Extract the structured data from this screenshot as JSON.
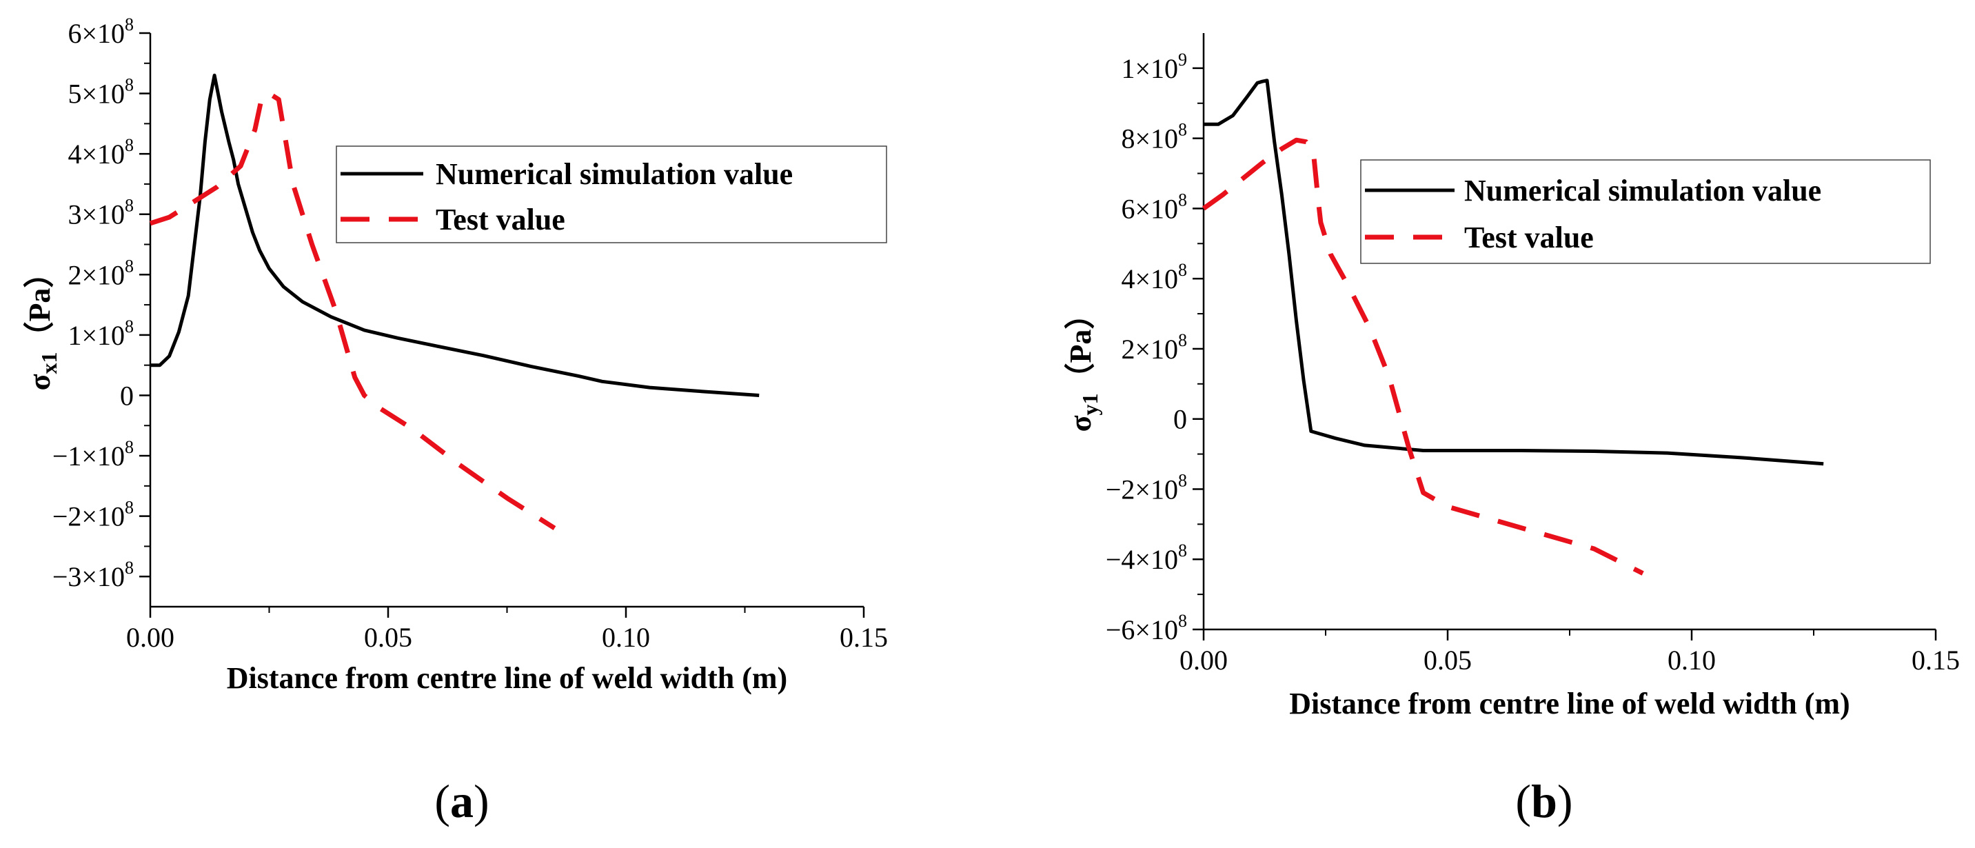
{
  "chart_data": [
    {
      "type": "line",
      "panel_label": "a",
      "xlabel": "Distance from centre line of weld width (m)",
      "ylabel": {
        "main": "σ",
        "sub": "x1",
        "unit": "（Pa）"
      },
      "xlim": [
        0.0,
        0.15
      ],
      "ylim": [
        -350000000,
        600000000
      ],
      "x_ticks": [
        {
          "value": 0.0,
          "label": "0.00"
        },
        {
          "value": 0.05,
          "label": "0.05"
        },
        {
          "value": 0.1,
          "label": "0.10"
        },
        {
          "value": 0.15,
          "label": "0.15"
        }
      ],
      "y_ticks": [
        {
          "value": 600000000,
          "mant": "6×10",
          "exp": "8"
        },
        {
          "value": 500000000,
          "mant": "5×10",
          "exp": "8"
        },
        {
          "value": 400000000,
          "mant": "4×10",
          "exp": "8"
        },
        {
          "value": 300000000,
          "mant": "3×10",
          "exp": "8"
        },
        {
          "value": 200000000,
          "mant": "2×10",
          "exp": "8"
        },
        {
          "value": 100000000,
          "mant": "1×10",
          "exp": "8"
        },
        {
          "value": 0,
          "mant": "0",
          "exp": ""
        },
        {
          "value": -100000000,
          "mant": "−1×10",
          "exp": "8"
        },
        {
          "value": -200000000,
          "mant": "−2×10",
          "exp": "8"
        },
        {
          "value": -300000000,
          "mant": "−3×10",
          "exp": "8"
        }
      ],
      "legend_position": "upper-right",
      "series": [
        {
          "name": "Numerical simulation value",
          "color": "#000000",
          "style": "solid",
          "x": [
            0.0,
            0.002,
            0.004,
            0.006,
            0.008,
            0.0105,
            0.0115,
            0.0125,
            0.0135,
            0.015,
            0.0165,
            0.0175,
            0.0185,
            0.02,
            0.0215,
            0.023,
            0.025,
            0.028,
            0.032,
            0.038,
            0.045,
            0.052,
            0.06,
            0.07,
            0.08,
            0.09,
            0.095,
            0.105,
            0.115,
            0.128
          ],
          "y": [
            50000000,
            50000000,
            65000000,
            105000000,
            165000000,
            330000000,
            420000000,
            490000000,
            530000000,
            470000000,
            420000000,
            390000000,
            350000000,
            310000000,
            270000000,
            240000000,
            210000000,
            180000000,
            155000000,
            130000000,
            108000000,
            95000000,
            82000000,
            66000000,
            48000000,
            32000000,
            23000000,
            13000000,
            7000000,
            0
          ]
        },
        {
          "name": "Test value",
          "color": "#e8101a",
          "style": "dashed",
          "x": [
            0.0,
            0.004,
            0.009,
            0.014,
            0.019,
            0.022,
            0.0235,
            0.025,
            0.027,
            0.03,
            0.034,
            0.039,
            0.043,
            0.045,
            0.048,
            0.055,
            0.065,
            0.075,
            0.085
          ],
          "y": [
            285000000,
            295000000,
            320000000,
            345000000,
            380000000,
            440000000,
            495000000,
            500000000,
            490000000,
            350000000,
            250000000,
            140000000,
            30000000,
            0,
            -20000000,
            -55000000,
            -115000000,
            -170000000,
            -220000000
          ]
        }
      ]
    },
    {
      "type": "line",
      "panel_label": "b",
      "xlabel": "Distance from centre line of weld width (m)",
      "ylabel": {
        "main": "σ",
        "sub": "y1",
        "unit": "（Pa）"
      },
      "xlim": [
        0.0,
        0.15
      ],
      "ylim": [
        -600000000,
        1100000000
      ],
      "x_ticks": [
        {
          "value": 0.0,
          "label": "0.00"
        },
        {
          "value": 0.05,
          "label": "0.05"
        },
        {
          "value": 0.1,
          "label": "0.10"
        },
        {
          "value": 0.15,
          "label": "0.15"
        }
      ],
      "y_ticks": [
        {
          "value": 1000000000,
          "mant": "1×10",
          "exp": "9"
        },
        {
          "value": 800000000,
          "mant": "8×10",
          "exp": "8"
        },
        {
          "value": 600000000,
          "mant": "6×10",
          "exp": "8"
        },
        {
          "value": 400000000,
          "mant": "4×10",
          "exp": "8"
        },
        {
          "value": 200000000,
          "mant": "2×10",
          "exp": "8"
        },
        {
          "value": 0,
          "mant": "0",
          "exp": ""
        },
        {
          "value": -200000000,
          "mant": "−2×10",
          "exp": "8"
        },
        {
          "value": -400000000,
          "mant": "−4×10",
          "exp": "8"
        },
        {
          "value": -600000000,
          "mant": "−6×10",
          "exp": "8"
        }
      ],
      "legend_position": "upper-right",
      "series": [
        {
          "name": "Numerical simulation value",
          "color": "#000000",
          "style": "solid",
          "x": [
            0.0,
            0.003,
            0.006,
            0.009,
            0.011,
            0.012,
            0.013,
            0.0145,
            0.016,
            0.0175,
            0.019,
            0.0205,
            0.022,
            0.027,
            0.033,
            0.045,
            0.065,
            0.08,
            0.095,
            0.11,
            0.127
          ],
          "y": [
            840000000,
            840000000,
            865000000,
            920000000,
            958000000,
            962000000,
            965000000,
            790000000,
            640000000,
            470000000,
            280000000,
            110000000,
            -35000000,
            -55000000,
            -75000000,
            -90000000,
            -90000000,
            -92000000,
            -97000000,
            -110000000,
            -128000000
          ]
        },
        {
          "name": "Test value",
          "color": "#e8101a",
          "style": "dashed",
          "x": [
            0.0,
            0.004,
            0.008,
            0.012,
            0.016,
            0.019,
            0.021,
            0.0225,
            0.0235,
            0.024,
            0.026,
            0.03,
            0.034,
            0.038,
            0.042,
            0.045,
            0.05,
            0.06,
            0.07,
            0.08,
            0.09
          ],
          "y": [
            600000000,
            640000000,
            685000000,
            730000000,
            770000000,
            795000000,
            790000000,
            760000000,
            620000000,
            560000000,
            470000000,
            370000000,
            260000000,
            120000000,
            -80000000,
            -210000000,
            -250000000,
            -290000000,
            -330000000,
            -370000000,
            -440000000
          ]
        }
      ]
    }
  ]
}
